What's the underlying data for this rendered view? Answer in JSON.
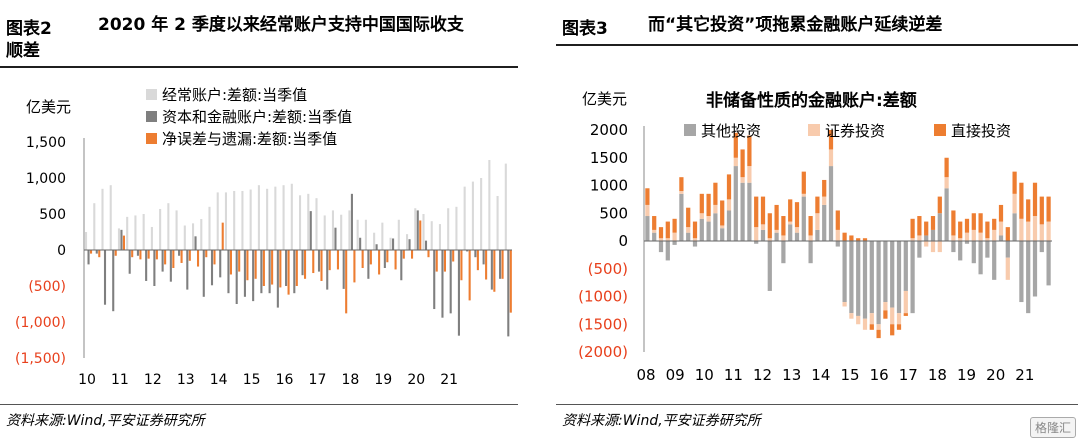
{
  "left": {
    "fig_no": "图表2",
    "title_line1": "2020 年 2 季度以来经常账户支持中国国际收支",
    "title_line2": "顺差",
    "unit": "亿美元",
    "source": "资料来源:Wind,平安证券研究所",
    "colors": {
      "current": "#d9d9d9",
      "capital": "#7f7f7f",
      "errors": "#ed7d31",
      "neg_tick": "#e8401c"
    }
  },
  "right": {
    "fig_no": "图表3",
    "title": "而“其它投资”项拖累金融账户延续逆差",
    "unit": "亿美元",
    "subtitle": "非储备性质的金融账户:差额",
    "source": "资料来源:Wind,平安证券研究所",
    "colors": {
      "other": "#a6a6a6",
      "portfolio": "#f8cbad",
      "direct": "#ed7d31",
      "neg_tick": "#e8401c"
    }
  },
  "watermark": "格隆汇",
  "chart_data": [
    {
      "type": "bar",
      "stacked": false,
      "ylabel": "亿美元",
      "ylim": [
        -1500,
        1500
      ],
      "y_ticks": [
        1500,
        1000,
        500,
        0,
        -500,
        -1000,
        -1500
      ],
      "y_tick_labels": [
        "1,500",
        "1,000",
        "500",
        "0",
        "(500)",
        "(1,000)",
        "(1,500)"
      ],
      "x_tick_labels": [
        "10",
        "11",
        "12",
        "13",
        "14",
        "15",
        "16",
        "17",
        "18",
        "19",
        "20",
        "21"
      ],
      "legend_position": "top-left",
      "series": [
        {
          "name": "经常账户:差额:当季值",
          "key": "current",
          "values": [
            250,
            650,
            850,
            900,
            300,
            460,
            480,
            500,
            320,
            570,
            650,
            550,
            340,
            370,
            430,
            600,
            800,
            800,
            820,
            820,
            840,
            900,
            850,
            880,
            900,
            920,
            760,
            780,
            720,
            480,
            550,
            490,
            550,
            420,
            420,
            240,
            380,
            170,
            420,
            220,
            580,
            500,
            400,
            360,
            580,
            600,
            880,
            950,
            1000,
            1250,
            750,
            1200
          ]
        },
        {
          "name": "资本和金融账户:差额:当季值",
          "key": "capital",
          "values": [
            -200,
            -50,
            -760,
            -850,
            280,
            -330,
            -80,
            -430,
            -500,
            -300,
            -440,
            -80,
            -550,
            190,
            -650,
            -490,
            -380,
            -600,
            -750,
            -650,
            -710,
            -600,
            -600,
            -800,
            -500,
            -600,
            -350,
            540,
            -300,
            -550,
            310,
            -540,
            780,
            170,
            -400,
            80,
            -250,
            160,
            -420,
            150,
            550,
            130,
            -820,
            -940,
            -880,
            -1190,
            -20,
            -100,
            -200,
            -550,
            -400,
            -1200
          ]
        },
        {
          "name": "净误差与遗漏:差额:当季值",
          "key": "errors",
          "values": [
            -50,
            -100,
            0,
            -80,
            200,
            -100,
            -130,
            -120,
            -130,
            -200,
            -250,
            -180,
            -150,
            -230,
            -100,
            -200,
            380,
            -340,
            -300,
            -420,
            -400,
            -500,
            -480,
            -520,
            -620,
            -500,
            -400,
            -320,
            -430,
            -280,
            -270,
            -880,
            -450,
            -250,
            -200,
            -340,
            -170,
            -270,
            -120,
            -120,
            410,
            -100,
            -300,
            -300,
            -160,
            -420,
            -700,
            -280,
            -410,
            -580,
            -400,
            -870
          ]
        }
      ]
    },
    {
      "type": "bar",
      "stacked": true,
      "title": "非储备性质的金融账户:差额",
      "ylabel": "亿美元",
      "ylim": [
        -2000,
        2000
      ],
      "y_ticks": [
        2000,
        1500,
        1000,
        500,
        0,
        -500,
        -1000,
        -1500,
        -2000
      ],
      "y_tick_labels": [
        "2000",
        "1500",
        "1000",
        "500",
        "0",
        "(500)",
        "(1000)",
        "(1500)",
        "(2000)"
      ],
      "x_tick_labels": [
        "08",
        "09",
        "10",
        "11",
        "12",
        "13",
        "14",
        "15",
        "16",
        "17",
        "18",
        "19",
        "20",
        "21"
      ],
      "legend_position": "top",
      "series": [
        {
          "name": "其他投资",
          "key": "other",
          "values": [
            450,
            150,
            -200,
            -350,
            -70,
            850,
            150,
            -100,
            400,
            350,
            500,
            230,
            550,
            1350,
            1050,
            1050,
            -50,
            200,
            -900,
            150,
            -400,
            300,
            150,
            800,
            -400,
            200,
            650,
            1350,
            -100,
            -1100,
            -1300,
            -1350,
            -1400,
            -1300,
            -1500,
            -1100,
            -1200,
            -1300,
            -900,
            -1300,
            -300,
            100,
            200,
            500,
            950,
            -200,
            -350,
            -50,
            -400,
            -600,
            -300,
            -700,
            100,
            -300,
            500,
            -1100,
            -1300,
            -1000,
            -200,
            -800
          ]
        },
        {
          "name": "证券投资",
          "key": "portfolio",
          "values": [
            200,
            50,
            50,
            50,
            150,
            50,
            100,
            50,
            100,
            100,
            150,
            50,
            200,
            150,
            100,
            300,
            250,
            100,
            50,
            50,
            100,
            50,
            100,
            50,
            100,
            300,
            150,
            300,
            200,
            -80,
            -100,
            -150,
            -200,
            -200,
            -100,
            -150,
            -300,
            -200,
            -400,
            50,
            100,
            -100,
            -200,
            -200,
            200,
            100,
            50,
            150,
            200,
            150,
            50,
            200,
            250,
            -400,
            350,
            400,
            350,
            450,
            300,
            350
          ]
        },
        {
          "name": "直接投资",
          "key": "direct",
          "values": [
            300,
            250,
            200,
            300,
            250,
            250,
            350,
            300,
            350,
            400,
            400,
            450,
            450,
            450,
            500,
            550,
            550,
            500,
            450,
            450,
            350,
            400,
            450,
            400,
            350,
            300,
            300,
            350,
            350,
            150,
            100,
            50,
            50,
            -100,
            -150,
            -150,
            -200,
            -100,
            -50,
            350,
            350,
            250,
            250,
            300,
            350,
            450,
            300,
            250,
            300,
            350,
            300,
            200,
            300,
            250,
            400,
            650,
            400,
            600,
            500,
            450
          ]
        }
      ]
    }
  ]
}
